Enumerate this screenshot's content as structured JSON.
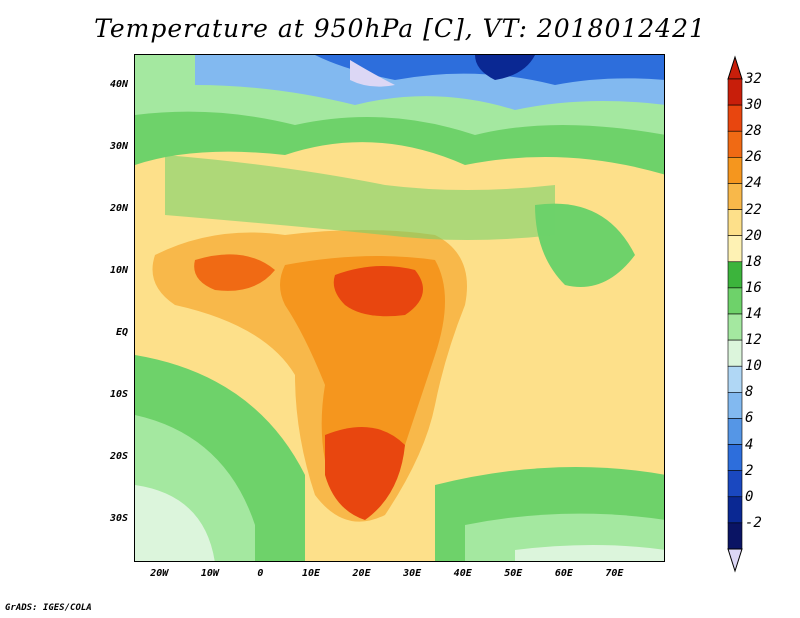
{
  "title": "Temperature at 950hPa [C], VT: 2018012421",
  "credit": "GrADS: IGES/COLA",
  "map": {
    "lon_range": [
      -25,
      80
    ],
    "lat_range": [
      -37,
      45
    ],
    "y_ticks": [
      {
        "lat": 40,
        "label": "40N"
      },
      {
        "lat": 30,
        "label": "30N"
      },
      {
        "lat": 20,
        "label": "20N"
      },
      {
        "lat": 10,
        "label": "10N"
      },
      {
        "lat": 0,
        "label": "EQ"
      },
      {
        "lat": -10,
        "label": "10S"
      },
      {
        "lat": -20,
        "label": "20S"
      },
      {
        "lat": -30,
        "label": "30S"
      }
    ],
    "x_ticks": [
      {
        "lon": -20,
        "label": "20W"
      },
      {
        "lon": -10,
        "label": "10W"
      },
      {
        "lon": 0,
        "label": "0"
      },
      {
        "lon": 10,
        "label": "10E"
      },
      {
        "lon": 20,
        "label": "20E"
      },
      {
        "lon": 30,
        "label": "30E"
      },
      {
        "lon": 40,
        "label": "40E"
      },
      {
        "lon": 50,
        "label": "50E"
      },
      {
        "lon": 60,
        "label": "60E"
      },
      {
        "lon": 70,
        "label": "70E"
      }
    ]
  },
  "colorbar": {
    "levels": [
      "32",
      "30",
      "28",
      "26",
      "24",
      "22",
      "20",
      "18",
      "16",
      "14",
      "12",
      "10",
      "8",
      "6",
      "4",
      "2",
      "0",
      "-2"
    ],
    "colors": [
      "#c81e0a",
      "#e8460f",
      "#f06a14",
      "#f5961e",
      "#f8b84a",
      "#fde08a",
      "#fef2b4",
      "#3cb43c",
      "#6ed26a",
      "#a4e8a0",
      "#dcf5dc",
      "#b0d7f5",
      "#82b9f0",
      "#5596e6",
      "#2d6edc",
      "#1a48c0",
      "#0a2893",
      "#0a1464"
    ],
    "top_arrow_color": "#c81e0a",
    "bottom_arrow_color": "#dcd7f5"
  },
  "palette": {
    "ocean_warm": "#fde08a",
    "ocean_hot": "#f8b84a",
    "med_cold": "#5a8fe0",
    "very_cold": "#0a2893",
    "lavender": "#dcd7f5"
  }
}
